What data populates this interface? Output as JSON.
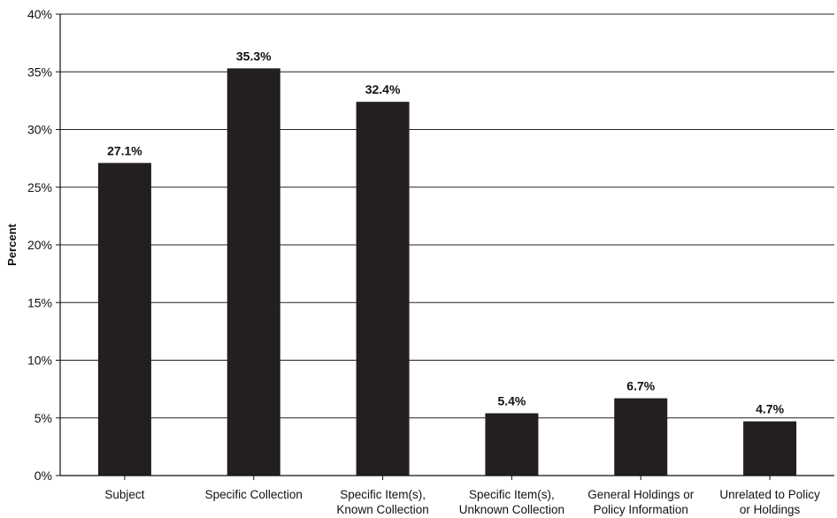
{
  "chart_data": {
    "type": "bar",
    "title": "",
    "xlabel": "",
    "ylabel": "Percent",
    "ylim": [
      0,
      40
    ],
    "y_ticks": [
      0,
      5,
      10,
      15,
      20,
      25,
      30,
      35,
      40
    ],
    "y_tick_labels": [
      "0%",
      "5%",
      "10%",
      "15%",
      "20%",
      "25%",
      "30%",
      "35%",
      "40%"
    ],
    "grid": "horizontal",
    "legend": "none",
    "categories": [
      [
        "Subject"
      ],
      [
        "Specific Collection"
      ],
      [
        "Specific Item(s),",
        "Known Collection"
      ],
      [
        "Specific Item(s),",
        "Unknown Collection"
      ],
      [
        "General Holdings or",
        "Policy Information"
      ],
      [
        "Unrelated to Policy",
        "or Holdings"
      ]
    ],
    "values": [
      27.1,
      35.3,
      32.4,
      5.4,
      6.7,
      4.7
    ],
    "data_labels": [
      "27.1%",
      "35.3%",
      "32.4%",
      "5.4%",
      "6.7%",
      "4.7%"
    ],
    "colors": {
      "bar": "#231f20",
      "grid": "#222222",
      "axis": "#111111",
      "text": "#111111"
    }
  }
}
